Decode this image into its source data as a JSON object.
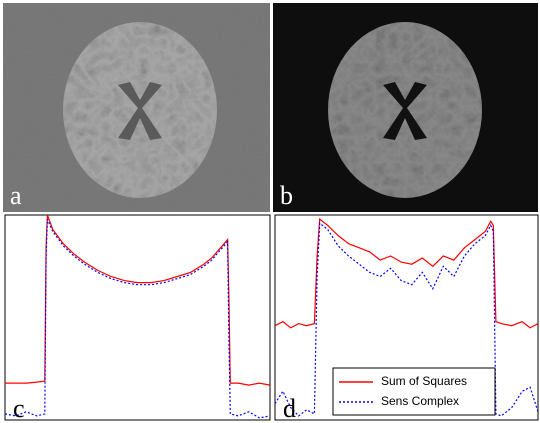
{
  "image_panels": [
    {
      "label": "a"
    },
    {
      "label": "b"
    }
  ],
  "chart_data": [
    {
      "type": "line",
      "label": "c",
      "x": [
        0,
        4,
        8,
        12,
        15,
        15.5,
        16,
        18,
        22,
        26,
        30,
        35,
        40,
        45,
        50,
        55,
        60,
        65,
        70,
        75,
        78,
        80,
        82,
        84,
        84.5,
        85,
        88,
        92,
        96,
        100
      ],
      "xlim": [
        0,
        100
      ],
      "ylim": [
        0,
        100
      ],
      "series": [
        {
          "name": "Sum of Squares",
          "color": "#ff0000",
          "style": "solid",
          "values": [
            18,
            18,
            18,
            18.5,
            19,
            85,
            100,
            93,
            86,
            81,
            77,
            73,
            70,
            68,
            67,
            67,
            68,
            70,
            72,
            76,
            79,
            82,
            85,
            88,
            60,
            18,
            18,
            17,
            18,
            17
          ]
        },
        {
          "name": "Sens Complex",
          "color": "#0000ff",
          "style": "dotted",
          "values": [
            3,
            2,
            4,
            2,
            3,
            80,
            98,
            92,
            85,
            80,
            76,
            72,
            69,
            67,
            66,
            66,
            67,
            69,
            71,
            75,
            78,
            81,
            84,
            87,
            40,
            3,
            2,
            4,
            1,
            2
          ]
        }
      ]
    },
    {
      "type": "line",
      "label": "d",
      "legend": true,
      "x": [
        0,
        3,
        6,
        9,
        12,
        15,
        16,
        17,
        20,
        24,
        28,
        32,
        36,
        40,
        44,
        48,
        52,
        56,
        60,
        64,
        68,
        72,
        76,
        80,
        82,
        83,
        84,
        86,
        90,
        94,
        97,
        100
      ],
      "xlim": [
        0,
        100
      ],
      "ylim": [
        0,
        100
      ],
      "series": [
        {
          "name": "Sum of Squares",
          "color": "#ff0000",
          "style": "solid",
          "values": [
            46,
            48,
            45,
            47,
            46,
            47,
            80,
            98,
            95,
            90,
            86,
            84,
            82,
            78,
            80,
            77,
            76,
            79,
            75,
            80,
            78,
            84,
            88,
            92,
            97,
            95,
            48,
            47,
            46,
            48,
            45,
            47
          ]
        },
        {
          "name": "Sens Complex",
          "color": "#0000ff",
          "style": "dotted",
          "values": [
            8,
            14,
            6,
            2,
            5,
            3,
            70,
            96,
            93,
            85,
            80,
            76,
            72,
            70,
            74,
            68,
            66,
            72,
            64,
            75,
            70,
            80,
            86,
            90,
            95,
            92,
            3,
            2,
            6,
            14,
            16,
            4
          ]
        }
      ]
    }
  ]
}
